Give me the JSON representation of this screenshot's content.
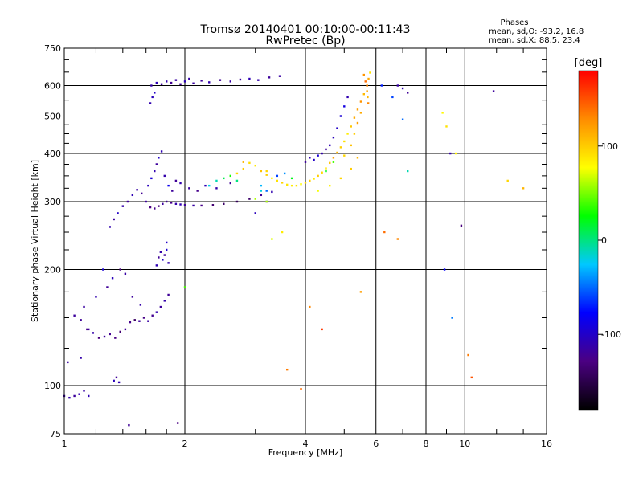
{
  "chart_data": {
    "type": "scatter",
    "title": "Tromsø 20140401 00:10:00-00:11:43",
    "subtitle": "RwPretec (Bp)",
    "xlabel": "Frequency [MHz]",
    "ylabel": "Stationary phase Virtual Height [km]",
    "x_scale": "log",
    "y_scale": "log",
    "xlim": [
      1,
      16
    ],
    "ylim": [
      75,
      750
    ],
    "x_ticks": [
      {
        "value": 1,
        "label": "1"
      },
      {
        "value": 2,
        "label": "2"
      },
      {
        "value": 4,
        "label": "4"
      },
      {
        "value": 6,
        "label": "6"
      },
      {
        "value": 8,
        "label": "8"
      },
      {
        "value": 10,
        "label": "10"
      },
      {
        "value": 16,
        "label": "16"
      }
    ],
    "y_ticks": [
      {
        "value": 75,
        "label": "75"
      },
      {
        "value": 100,
        "label": "100"
      },
      {
        "value": 200,
        "label": "200"
      },
      {
        "value": 300,
        "label": "300"
      },
      {
        "value": 400,
        "label": "400"
      },
      {
        "value": 500,
        "label": "500"
      },
      {
        "value": 600,
        "label": "600"
      },
      {
        "value": 750,
        "label": "750"
      }
    ],
    "grid": true,
    "stats": {
      "heading": "Phases",
      "line_o": "mean, sd,O: -93.2, 16.8",
      "line_x": "mean, sd,X:  88.5, 23.4"
    },
    "colorbar": {
      "label": "[deg]",
      "range": [
        -180,
        180
      ],
      "ticks": [
        {
          "value": 100,
          "label": "100"
        },
        {
          "value": 0,
          "label": "0"
        },
        {
          "value": -100,
          "label": "-100"
        }
      ],
      "colors": [
        "#000000",
        "#4b0082",
        "#0000ff",
        "#00c8ff",
        "#00ff00",
        "#ffff00",
        "#ff8c00",
        "#ff0000"
      ]
    },
    "series": [
      {
        "points": [
          [
            1.0,
            94
          ],
          [
            1.03,
            93
          ],
          [
            1.06,
            94
          ],
          [
            1.09,
            95
          ],
          [
            1.12,
            97
          ],
          [
            1.15,
            94
          ],
          [
            1.33,
            103
          ],
          [
            1.35,
            105
          ],
          [
            1.37,
            102
          ],
          [
            1.06,
            152
          ],
          [
            1.1,
            148
          ],
          [
            1.14,
            140
          ],
          [
            1.18,
            137
          ],
          [
            1.22,
            133
          ],
          [
            1.26,
            134
          ],
          [
            1.3,
            136
          ],
          [
            1.34,
            133
          ],
          [
            1.38,
            138
          ],
          [
            1.42,
            140
          ],
          [
            1.46,
            146
          ],
          [
            1.5,
            148
          ],
          [
            1.54,
            147
          ],
          [
            1.58,
            150
          ],
          [
            1.62,
            147
          ],
          [
            1.66,
            152
          ],
          [
            1.7,
            155
          ],
          [
            1.74,
            160
          ],
          [
            1.78,
            166
          ],
          [
            1.82,
            172
          ],
          [
            1.12,
            160
          ],
          [
            1.2,
            170
          ],
          [
            1.28,
            180
          ],
          [
            1.32,
            190
          ],
          [
            1.38,
            200
          ],
          [
            1.42,
            195
          ],
          [
            1.48,
            170
          ],
          [
            1.55,
            162
          ],
          [
            1.7,
            205
          ],
          [
            1.72,
            215
          ],
          [
            1.74,
            222
          ],
          [
            1.76,
            212
          ],
          [
            1.78,
            218
          ],
          [
            1.8,
            225
          ],
          [
            1.82,
            208
          ],
          [
            1.3,
            258
          ],
          [
            1.33,
            270
          ],
          [
            1.36,
            280
          ],
          [
            1.4,
            292
          ],
          [
            1.44,
            300
          ],
          [
            1.48,
            312
          ],
          [
            1.52,
            322
          ],
          [
            1.56,
            315
          ],
          [
            1.6,
            300
          ],
          [
            1.64,
            290
          ],
          [
            1.68,
            288
          ],
          [
            1.72,
            292
          ],
          [
            1.76,
            296
          ],
          [
            1.8,
            300
          ],
          [
            1.85,
            298
          ],
          [
            1.9,
            296
          ],
          [
            1.95,
            295
          ],
          [
            2.0,
            294
          ],
          [
            2.1,
            293
          ],
          [
            2.2,
            293
          ],
          [
            2.35,
            294
          ],
          [
            2.5,
            296
          ],
          [
            2.7,
            300
          ],
          [
            2.9,
            305
          ],
          [
            3.1,
            312
          ],
          [
            3.3,
            318
          ],
          [
            1.62,
            330
          ],
          [
            1.65,
            345
          ],
          [
            1.68,
            360
          ],
          [
            1.7,
            375
          ],
          [
            1.72,
            390
          ],
          [
            1.75,
            405
          ],
          [
            1.78,
            350
          ],
          [
            1.82,
            330
          ],
          [
            1.86,
            320
          ],
          [
            1.9,
            340
          ],
          [
            1.95,
            335
          ],
          [
            2.05,
            325
          ],
          [
            2.15,
            320
          ],
          [
            2.25,
            330
          ],
          [
            2.4,
            325
          ],
          [
            2.6,
            335
          ],
          [
            1.65,
            600
          ],
          [
            1.7,
            610
          ],
          [
            1.75,
            605
          ],
          [
            1.8,
            615
          ],
          [
            1.85,
            610
          ],
          [
            1.9,
            620
          ],
          [
            1.95,
            605
          ],
          [
            2.0,
            615
          ],
          [
            2.05,
            625
          ],
          [
            2.1,
            608
          ],
          [
            2.2,
            618
          ],
          [
            2.3,
            612
          ],
          [
            2.45,
            620
          ],
          [
            2.6,
            615
          ],
          [
            2.75,
            622
          ],
          [
            2.9,
            625
          ],
          [
            3.05,
            620
          ],
          [
            3.25,
            630
          ],
          [
            3.45,
            635
          ],
          [
            1.64,
            540
          ],
          [
            1.66,
            560
          ],
          [
            1.68,
            575
          ],
          [
            1.92,
            80
          ],
          [
            1.45,
            79
          ],
          [
            1.02,
            115
          ],
          [
            1.1,
            118
          ],
          [
            1.15,
            140
          ],
          [
            1.25,
            200
          ],
          [
            1.8,
            235
          ],
          [
            3.0,
            280
          ],
          [
            3.2,
            300
          ],
          [
            4.0,
            380
          ],
          [
            4.1,
            390
          ],
          [
            4.2,
            385
          ],
          [
            4.3,
            395
          ],
          [
            4.4,
            400
          ],
          [
            4.5,
            410
          ],
          [
            4.6,
            420
          ],
          [
            4.7,
            440
          ],
          [
            4.8,
            465
          ],
          [
            4.9,
            500
          ],
          [
            5.0,
            530
          ],
          [
            5.1,
            560
          ],
          [
            6.8,
            600
          ],
          [
            7.0,
            590
          ],
          [
            7.2,
            575
          ],
          [
            9.2,
            400
          ],
          [
            11.8,
            580
          ],
          [
            9.8,
            260
          ]
        ],
        "phases": [
          -115,
          -112,
          -118,
          -110,
          -114,
          -108,
          -105,
          -120,
          -110,
          -118,
          -120,
          -125,
          -112,
          -130,
          -118,
          -122,
          -128,
          -135,
          -120,
          -125,
          -140,
          -118,
          -126,
          -115,
          -122,
          -110,
          -118,
          -112,
          -120,
          -116,
          -110,
          -120,
          -105,
          -128,
          -114,
          -118,
          -112,
          -108,
          -120,
          -112,
          -100,
          -118,
          -95,
          -110,
          -110,
          -118,
          -100,
          -112,
          -120,
          -108,
          -115,
          -122,
          -118,
          -128,
          -125,
          -130,
          -118,
          -122,
          -125,
          -112,
          -110,
          -118,
          -115,
          -125,
          -135,
          -140,
          -145,
          -138,
          -120,
          -110,
          -105,
          -95,
          -110,
          -118,
          -100,
          -108,
          -112,
          -85,
          -118,
          -120,
          -110,
          -115,
          -125,
          -108,
          -112,
          -120,
          -112,
          -108,
          -118,
          -110,
          -122,
          -115,
          -120,
          -108,
          -112,
          -116,
          -118,
          -110,
          -120,
          -114,
          -118,
          -108,
          -112,
          -118,
          -115,
          -110,
          -105,
          -100,
          -128,
          -120,
          -115,
          -112,
          -118,
          -95,
          -100,
          -105,
          -112,
          -118,
          -110,
          -100,
          -95,
          -112,
          -118,
          -108,
          -105,
          -100,
          -95,
          -90,
          -110,
          -115,
          -110,
          -120,
          -112,
          -118,
          -130
        ]
      },
      {
        "points": [
          [
            2.7,
            355
          ],
          [
            2.8,
            365
          ],
          [
            2.9,
            378
          ],
          [
            3.0,
            372
          ],
          [
            3.1,
            360
          ],
          [
            3.2,
            352
          ],
          [
            3.3,
            345
          ],
          [
            3.4,
            340
          ],
          [
            3.5,
            336
          ],
          [
            3.6,
            332
          ],
          [
            3.7,
            330
          ],
          [
            3.8,
            330
          ],
          [
            3.9,
            333
          ],
          [
            4.0,
            336
          ],
          [
            4.1,
            340
          ],
          [
            4.2,
            344
          ],
          [
            4.3,
            350
          ],
          [
            4.4,
            357
          ],
          [
            4.5,
            366
          ],
          [
            4.6,
            378
          ],
          [
            4.7,
            390
          ],
          [
            4.8,
            402
          ],
          [
            4.9,
            415
          ],
          [
            5.0,
            430
          ],
          [
            5.1,
            450
          ],
          [
            5.2,
            470
          ],
          [
            5.3,
            495
          ],
          [
            5.4,
            520
          ],
          [
            5.5,
            545
          ],
          [
            5.6,
            570
          ],
          [
            5.7,
            600
          ],
          [
            5.75,
            625
          ],
          [
            5.8,
            648
          ],
          [
            4.3,
            320
          ],
          [
            4.6,
            330
          ],
          [
            4.9,
            345
          ],
          [
            5.2,
            365
          ],
          [
            5.4,
            390
          ],
          [
            5.6,
            640
          ],
          [
            5.65,
            615
          ],
          [
            5.7,
            580
          ],
          [
            5.72,
            560
          ],
          [
            5.74,
            540
          ],
          [
            3.3,
            240
          ],
          [
            3.5,
            250
          ],
          [
            2.8,
            380
          ],
          [
            3.2,
            360
          ],
          [
            3.0,
            305
          ],
          [
            5.4,
            480
          ],
          [
            5.5,
            510
          ],
          [
            5.3,
            450
          ],
          [
            5.2,
            420
          ],
          [
            5.0,
            395
          ],
          [
            6.3,
            250
          ],
          [
            6.8,
            240
          ],
          [
            8.8,
            510
          ],
          [
            9.0,
            470
          ],
          [
            10.2,
            120
          ],
          [
            10.4,
            105
          ],
          [
            12.8,
            340
          ],
          [
            14.0,
            325
          ],
          [
            9.5,
            400
          ],
          [
            5.5,
            175
          ],
          [
            4.1,
            160
          ],
          [
            4.4,
            140
          ],
          [
            3.6,
            110
          ],
          [
            3.9,
            98
          ],
          [
            3.2,
            300
          ]
        ],
        "phases": [
          95,
          100,
          92,
          88,
          105,
          98,
          82,
          90,
          96,
          88,
          85,
          90,
          78,
          92,
          98,
          86,
          100,
          94,
          88,
          105,
          120,
          110,
          98,
          90,
          85,
          102,
          115,
          120,
          125,
          108,
          130,
          115,
          90,
          75,
          82,
          96,
          100,
          110,
          125,
          140,
          118,
          110,
          130,
          70,
          85,
          110,
          95,
          60,
          120,
          115,
          100,
          105,
          95,
          140,
          130,
          80,
          90,
          135,
          150,
          95,
          110,
          85,
          120,
          130,
          160,
          135,
          140,
          60
        ]
      },
      {
        "points": [
          [
            2.3,
            330
          ],
          [
            2.4,
            340
          ],
          [
            2.5,
            345
          ],
          [
            2.6,
            350
          ],
          [
            2.7,
            340
          ],
          [
            3.4,
            350
          ],
          [
            3.55,
            355
          ],
          [
            3.7,
            345
          ],
          [
            3.1,
            330
          ],
          [
            3.2,
            320
          ],
          [
            4.5,
            360
          ],
          [
            4.7,
            380
          ],
          [
            6.2,
            600
          ],
          [
            6.6,
            560
          ],
          [
            7.0,
            490
          ],
          [
            8.9,
            200
          ],
          [
            9.3,
            150
          ],
          [
            7.2,
            360
          ],
          [
            2.0,
            180
          ],
          [
            3.1,
            320
          ]
        ],
        "phases": [
          -20,
          -10,
          10,
          30,
          0,
          -60,
          -40,
          20,
          -30,
          -50,
          20,
          40,
          -70,
          -60,
          -50,
          -80,
          -45,
          -10,
          40,
          -20
        ]
      }
    ]
  }
}
